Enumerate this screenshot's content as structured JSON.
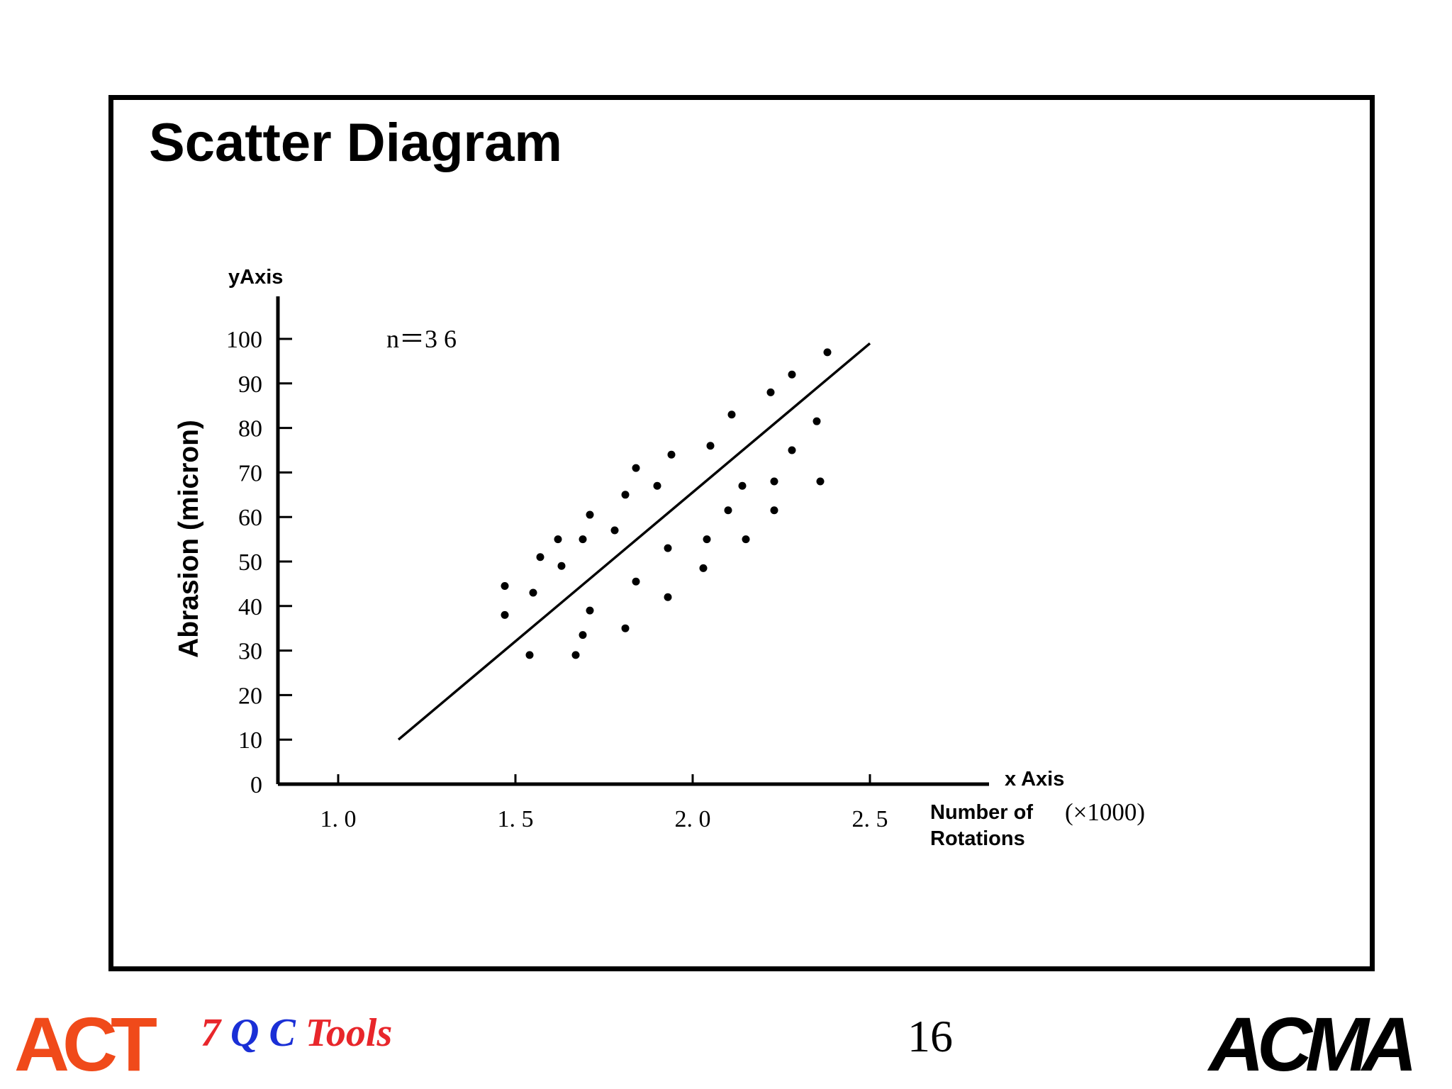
{
  "slide": {
    "title": "Scatter Diagram",
    "page_number": "16",
    "footer_left_logo": "ACT",
    "footer_right_logo": "ACMA",
    "footer_text": {
      "part1": "7",
      "part2": "Q",
      "part3": "C",
      "part4": "Tools"
    }
  },
  "colors": {
    "act_logo": "#f04a1a",
    "tools_red": "#e8262b",
    "tools_blue": "#1a2fd6"
  },
  "chart_data": {
    "type": "scatter",
    "y_axis_name": "yAxis",
    "ylabel": "Abrasion (micron)",
    "x_axis_name": "x Axis",
    "xlabel_line1": "Number of",
    "xlabel_line2": "Rotations",
    "x_unit": "(×1000)",
    "annotation": "n＝3 6",
    "xlim": [
      0.83,
      2.5
    ],
    "ylim": [
      0,
      100
    ],
    "x_ticks": [
      1.0,
      1.5,
      2.0,
      2.5
    ],
    "x_tick_labels": [
      "1. 0",
      "1. 5",
      "2. 0",
      "2. 5"
    ],
    "y_ticks": [
      0,
      10,
      20,
      30,
      40,
      50,
      60,
      70,
      80,
      90,
      100
    ],
    "y_tick_labels": [
      "0",
      "10",
      "20",
      "30",
      "40",
      "50",
      "60",
      "70",
      "80",
      "90",
      "100"
    ],
    "grid": false,
    "points": [
      {
        "x": 1.47,
        "y": 44.5
      },
      {
        "x": 1.47,
        "y": 38
      },
      {
        "x": 1.54,
        "y": 29
      },
      {
        "x": 1.55,
        "y": 43
      },
      {
        "x": 1.57,
        "y": 51
      },
      {
        "x": 1.62,
        "y": 55
      },
      {
        "x": 1.63,
        "y": 49
      },
      {
        "x": 1.67,
        "y": 29
      },
      {
        "x": 1.69,
        "y": 33.5
      },
      {
        "x": 1.69,
        "y": 55
      },
      {
        "x": 1.71,
        "y": 39
      },
      {
        "x": 1.71,
        "y": 60.5
      },
      {
        "x": 1.78,
        "y": 57
      },
      {
        "x": 1.81,
        "y": 35
      },
      {
        "x": 1.81,
        "y": 65
      },
      {
        "x": 1.84,
        "y": 45.5
      },
      {
        "x": 1.84,
        "y": 71
      },
      {
        "x": 1.9,
        "y": 67
      },
      {
        "x": 1.93,
        "y": 42
      },
      {
        "x": 1.93,
        "y": 53
      },
      {
        "x": 1.94,
        "y": 74
      },
      {
        "x": 2.03,
        "y": 48.5
      },
      {
        "x": 2.04,
        "y": 55
      },
      {
        "x": 2.05,
        "y": 76
      },
      {
        "x": 2.1,
        "y": 61.5
      },
      {
        "x": 2.11,
        "y": 83
      },
      {
        "x": 2.14,
        "y": 67
      },
      {
        "x": 2.15,
        "y": 55
      },
      {
        "x": 2.22,
        "y": 88
      },
      {
        "x": 2.23,
        "y": 61.5
      },
      {
        "x": 2.23,
        "y": 68
      },
      {
        "x": 2.28,
        "y": 75
      },
      {
        "x": 2.28,
        "y": 92
      },
      {
        "x": 2.35,
        "y": 81.5
      },
      {
        "x": 2.36,
        "y": 68
      },
      {
        "x": 2.38,
        "y": 97
      }
    ],
    "trend_line": {
      "x1": 1.17,
      "y1": 10,
      "x2": 2.5,
      "y2": 99
    }
  }
}
